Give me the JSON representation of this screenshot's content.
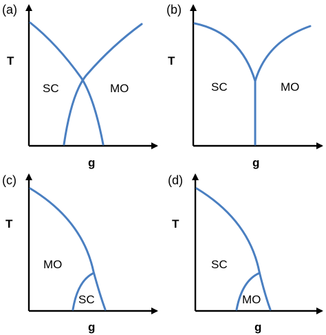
{
  "colors": {
    "curve": "#4a7fc1",
    "axes": "#000000",
    "background": "#ffffff"
  },
  "panels": [
    {
      "label": "(a)",
      "y_axis_label": "T",
      "x_axis_label": "g",
      "regions": [
        "SC",
        "MO"
      ]
    },
    {
      "label": "(b)",
      "y_axis_label": "T",
      "x_axis_label": "g",
      "regions": [
        "SC",
        "MO"
      ]
    },
    {
      "label": "(c)",
      "y_axis_label": "T",
      "x_axis_label": "g",
      "regions": [
        "MO",
        "SC"
      ]
    },
    {
      "label": "(d)",
      "y_axis_label": "T",
      "x_axis_label": "g",
      "regions": [
        "SC",
        "MO"
      ]
    }
  ]
}
